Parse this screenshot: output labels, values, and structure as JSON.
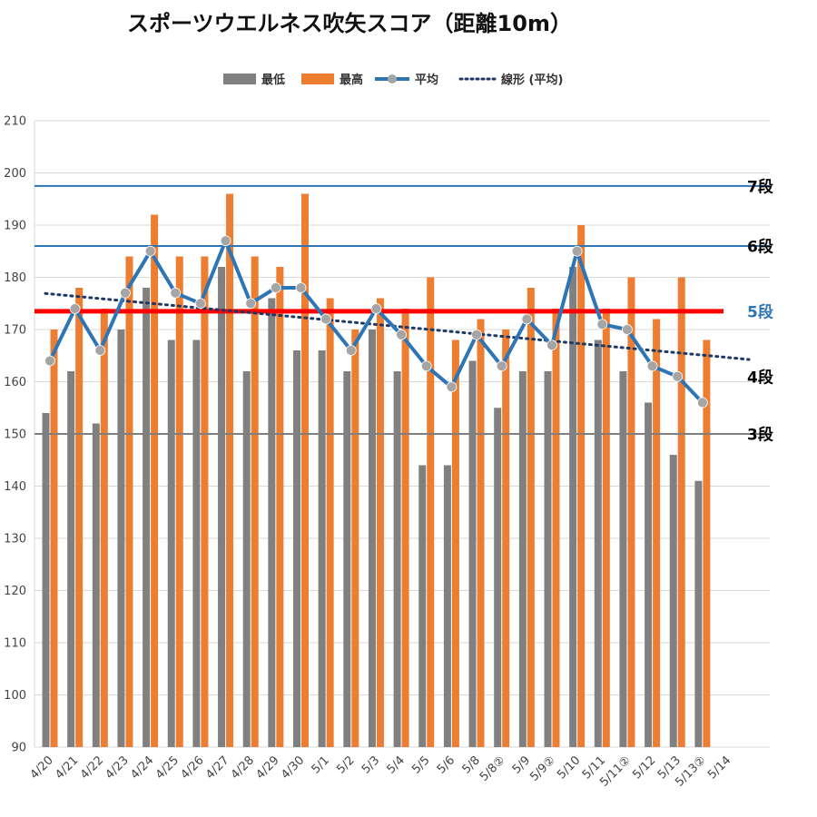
{
  "chart_data": {
    "type": "bar",
    "title": "スポーツウエルネス吹矢スコア（距離10m）",
    "categories": [
      "4/20",
      "4/21",
      "4/22",
      "4/23",
      "4/24",
      "4/25",
      "4/26",
      "4/27",
      "4/28",
      "4/29",
      "4/30",
      "5/1",
      "5/2",
      "5/3",
      "5/4",
      "5/5",
      "5/6",
      "5/8",
      "5/8②",
      "5/9",
      "5/9②",
      "5/10",
      "5/11",
      "5/11②",
      "5/12",
      "5/13",
      "5/13②",
      "5/14"
    ],
    "series": [
      {
        "name": "最低",
        "type": "bar",
        "color": "#808080",
        "values": [
          154,
          162,
          152,
          170,
          178,
          168,
          168,
          182,
          162,
          176,
          166,
          166,
          162,
          170,
          162,
          144,
          144,
          164,
          155,
          162,
          162,
          182,
          168,
          162,
          156,
          146,
          141,
          null
        ]
      },
      {
        "name": "最高",
        "type": "bar",
        "color": "#ED7D31",
        "values": [
          170,
          178,
          174,
          184,
          192,
          184,
          184,
          196,
          184,
          182,
          196,
          176,
          170,
          176,
          174,
          180,
          168,
          172,
          170,
          178,
          174,
          190,
          174,
          180,
          172,
          180,
          168,
          null
        ]
      },
      {
        "name": "平均",
        "type": "line",
        "color": "#2E75B6",
        "marker_color": "#A5A5A5",
        "values": [
          164,
          174,
          166,
          177,
          185,
          177,
          175,
          187,
          175,
          178,
          178,
          172,
          166,
          174,
          169,
          163,
          159,
          169,
          163,
          172,
          167,
          185,
          171,
          170,
          163,
          161,
          156,
          null
        ]
      },
      {
        "name": "線形 (平均)",
        "type": "trendline",
        "color": "#1F3864",
        "style": "dotted"
      }
    ],
    "ylim": [
      90,
      210
    ],
    "yticks": [
      90,
      100,
      110,
      120,
      130,
      140,
      150,
      160,
      170,
      180,
      190,
      200,
      210
    ],
    "grid": true,
    "legend_position": "top",
    "reference_lines": [
      {
        "label": "7段",
        "value": 197.5,
        "color": "#2E75B6",
        "label_color": "#000000"
      },
      {
        "label": "6段",
        "value": 186,
        "color": "#2E75B6",
        "label_color": "#000000"
      },
      {
        "label": "5段",
        "value": 173.5,
        "color": "#FF0000",
        "label_color": "#2E75B6"
      },
      {
        "label": "4段",
        "value": 161,
        "color": null,
        "label_color": "#000000"
      },
      {
        "label": "3段",
        "value": 150,
        "color": "#7F7F7F",
        "label_color": "#000000"
      }
    ]
  }
}
